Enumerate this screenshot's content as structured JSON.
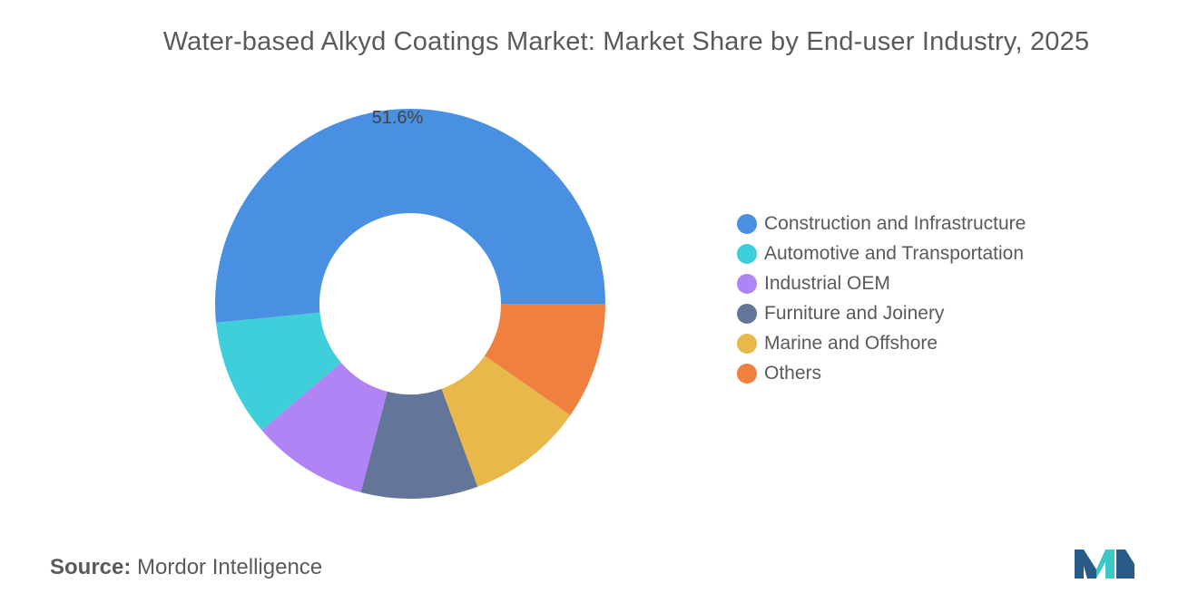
{
  "chart_data": {
    "type": "pie",
    "subtype": "donut",
    "title": "Water-based Alkyd Coatings Market: Market Share by End-user Industry, 2025",
    "categories": [
      "Construction and Infrastructure",
      "Automotive and Transportation",
      "Industrial OEM",
      "Furniture and Joinery",
      "Marine and Offshore",
      "Others"
    ],
    "values": [
      51.6,
      9.7,
      9.7,
      9.7,
      9.7,
      9.7
    ],
    "data_labels": [
      "51.6%",
      "",
      "",
      "",
      "",
      ""
    ],
    "colors": [
      "#4a90e2",
      "#3ecfdb",
      "#b084f5",
      "#637599",
      "#e9b84a",
      "#f08040"
    ],
    "legend_position": "right"
  },
  "source": {
    "label": "Source:",
    "text": "Mordor Intelligence"
  },
  "logo": {
    "icon": "mordor-intelligence-logo-icon",
    "colors": [
      "#2a5a87",
      "#3ec7c7"
    ]
  }
}
